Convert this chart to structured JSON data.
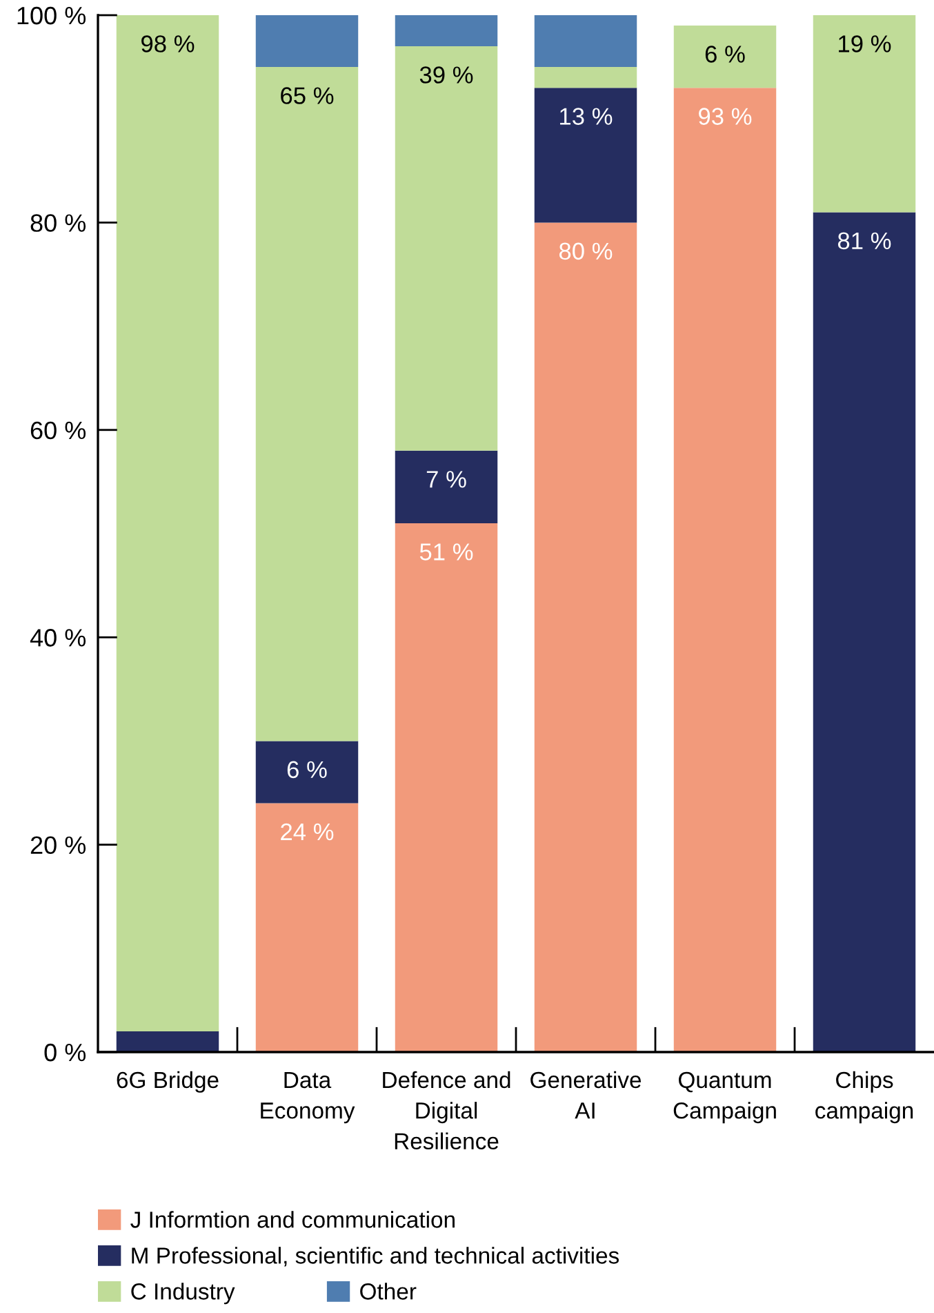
{
  "chart_data": {
    "type": "bar",
    "stacked": true,
    "categories": [
      "6G Bridge",
      "Data Economy",
      "Defence and Digital Resilience",
      "Generative AI",
      "Quantum Campaign",
      "Chips campaign"
    ],
    "series": [
      {
        "name": "J Informtion and communication",
        "color": "#f29a7b",
        "values": [
          null,
          24,
          51,
          80,
          93,
          null
        ],
        "value_labels": [
          null,
          "24 %",
          "51 %",
          "80 %",
          "93 %",
          null
        ]
      },
      {
        "name": "M Professional, scientific and technical activities",
        "color": "#252d60",
        "values": [
          2,
          6,
          7,
          13,
          null,
          81
        ],
        "value_labels": [
          null,
          "6 %",
          "7 %",
          "13 %",
          null,
          "81 %"
        ]
      },
      {
        "name": "C Industry",
        "color": "#c0dc98",
        "values": [
          98,
          65,
          39,
          2,
          6,
          19
        ],
        "value_labels": [
          "98 %",
          "65 %",
          "39 %",
          null,
          "6 %",
          "19 %"
        ]
      },
      {
        "name": "Other",
        "color": "#4f7db0",
        "values": [
          null,
          5,
          3,
          5,
          null,
          null
        ]
      }
    ],
    "ylim": [
      0,
      100
    ],
    "yticks": [
      {
        "value": 0,
        "label": "0 %"
      },
      {
        "value": 20,
        "label": "20 %"
      },
      {
        "value": 40,
        "label": "40 %"
      },
      {
        "value": 60,
        "label": "60 %"
      },
      {
        "value": 80,
        "label": "80 %"
      },
      {
        "value": 100,
        "label": "100 %"
      }
    ],
    "grid": false,
    "legend": "bottom"
  }
}
